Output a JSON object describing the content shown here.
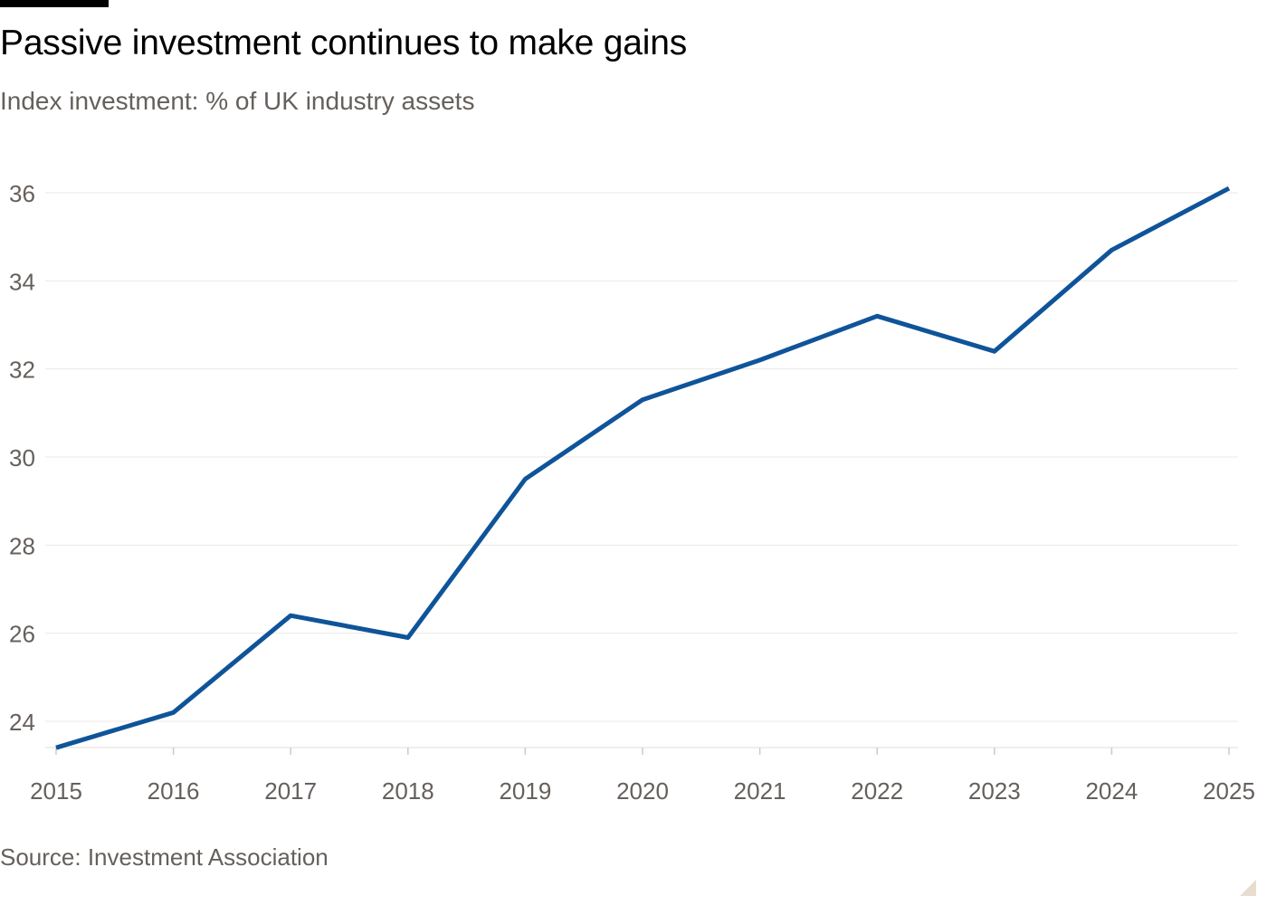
{
  "title": "Passive investment continues to make gains",
  "subtitle": "Index investment: % of UK industry assets",
  "source": "Source: Investment Association",
  "colors": {
    "line": "#0f5499",
    "grid": "#ece9e6",
    "tick_text": "#66605c",
    "axis": "#cfcac5"
  },
  "chart_data": {
    "type": "line",
    "title": "Passive investment continues to make gains",
    "subtitle": "Index investment: % of UK industry assets",
    "xlabel": "",
    "ylabel": "",
    "x": [
      "2015",
      "2016",
      "2017",
      "2018",
      "2019",
      "2020",
      "2021",
      "2022",
      "2023",
      "2024",
      "2025"
    ],
    "series": [
      {
        "values": [
          23.4,
          24.2,
          26.4,
          25.9,
          29.5,
          31.3,
          32.2,
          33.2,
          32.4,
          34.7,
          36.1
        ]
      }
    ],
    "y_ticks": [
      24,
      26,
      28,
      30,
      32,
      34,
      36
    ],
    "x_ticks": [
      "2015",
      "2016",
      "2017",
      "2018",
      "2019",
      "2020",
      "2021",
      "2022",
      "2023",
      "2024",
      "2025"
    ],
    "ylim": [
      23.4,
      36.1
    ],
    "grid": true,
    "legend": "none"
  }
}
